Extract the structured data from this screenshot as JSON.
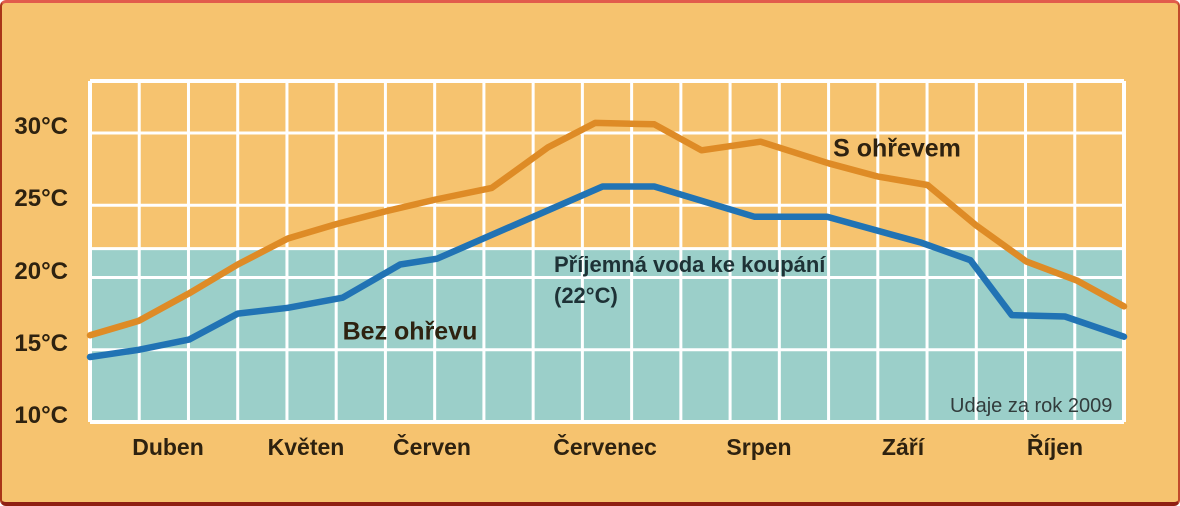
{
  "chart_data": {
    "type": "line",
    "title": "",
    "x_axis": {
      "months": [
        "Duben",
        "Květen",
        "Červen",
        "Červenec",
        "Srpen",
        "Září",
        "Říjen"
      ],
      "minor_divisions_per_month": 3
    },
    "y_axis": {
      "unit": "°C",
      "ticks": [
        {
          "value": 30,
          "label": "30°C"
        },
        {
          "value": 25,
          "label": "25°C"
        },
        {
          "value": 20,
          "label": "20°C"
        },
        {
          "value": 15,
          "label": "15°C"
        },
        {
          "value": 10,
          "label": "10°C"
        }
      ],
      "range_shown": [
        10,
        33.6
      ],
      "grid": true
    },
    "comfort_band": {
      "threshold_c": 22,
      "annotation_line1": "Příjemná voda ke koupání",
      "annotation_line2": "(22°C)",
      "fill_color": "#9bcfc9"
    },
    "series": [
      {
        "name": "S ohřevem",
        "color": "#de8b26",
        "points_month_temp": [
          [
            0,
            16.0
          ],
          [
            0.33,
            17.0
          ],
          [
            0.67,
            18.9
          ],
          [
            1.0,
            20.9
          ],
          [
            1.34,
            22.7
          ],
          [
            1.67,
            23.7
          ],
          [
            2.01,
            24.6
          ],
          [
            2.34,
            25.4
          ],
          [
            2.72,
            26.2
          ],
          [
            3.1,
            29.0
          ],
          [
            3.42,
            30.7
          ],
          [
            3.82,
            30.6
          ],
          [
            4.14,
            28.8
          ],
          [
            4.54,
            29.4
          ],
          [
            5.0,
            27.9
          ],
          [
            5.33,
            27.0
          ],
          [
            5.67,
            26.4
          ],
          [
            6.0,
            23.6
          ],
          [
            6.34,
            21.1
          ],
          [
            6.68,
            19.8
          ],
          [
            7.0,
            18.0
          ]
        ]
      },
      {
        "name": "Bez ohřevu",
        "color": "#2173b4",
        "points_month_temp": [
          [
            0,
            14.5
          ],
          [
            0.33,
            15.0
          ],
          [
            0.67,
            15.7
          ],
          [
            1.0,
            17.5
          ],
          [
            1.34,
            17.9
          ],
          [
            1.71,
            18.6
          ],
          [
            2.1,
            20.9
          ],
          [
            2.35,
            21.3
          ],
          [
            3.47,
            26.3
          ],
          [
            3.82,
            26.3
          ],
          [
            4.5,
            24.2
          ],
          [
            4.99,
            24.2
          ],
          [
            5.63,
            22.4
          ],
          [
            5.96,
            21.2
          ],
          [
            6.24,
            17.4
          ],
          [
            6.6,
            17.3
          ],
          [
            7.0,
            15.9
          ]
        ]
      }
    ],
    "note": "Udaje za rok 2009",
    "colors": {
      "background": "#f6c36f",
      "grid": "#ffffff",
      "label_text": "#2e2210",
      "annotation_text": "#1e3236"
    }
  }
}
